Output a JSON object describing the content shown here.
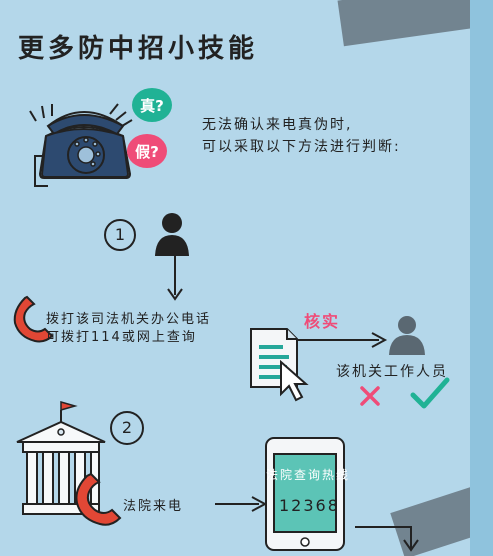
{
  "title": "更多防中招小技能",
  "bubbles": {
    "true": "真?",
    "false": "假?"
  },
  "intro": {
    "line1": "无法确认来电真伪时,",
    "line2": "可以采取以下方法进行判断:"
  },
  "steps": {
    "one": "1",
    "two": "2"
  },
  "step1": {
    "line1": "拨打该司法机关办公电话",
    "line2": "可拨打114或网上查询",
    "verify": "核实",
    "staff": "该机关工作人员"
  },
  "step2": {
    "court_call": "法院来电",
    "hotline_label": "法院查询热线",
    "hotline_number": "12368"
  }
}
